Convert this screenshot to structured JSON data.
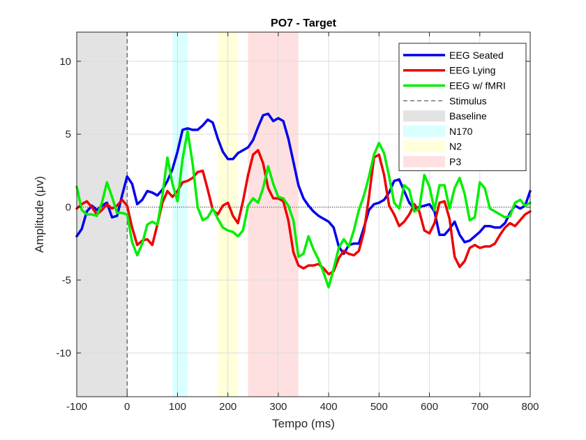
{
  "chart_data": {
    "type": "line",
    "title": "PO7 - Target",
    "xlabel": "Tempo (ms)",
    "ylabel": "Amplitude (μv)",
    "xlim": [
      -100,
      800
    ],
    "ylim": [
      -13,
      12
    ],
    "xticks": [
      -100,
      0,
      100,
      200,
      300,
      400,
      500,
      600,
      700,
      800
    ],
    "yticks": [
      -10,
      -5,
      0,
      5,
      10
    ],
    "grid": true,
    "legend_position": "top-right",
    "series": [
      {
        "name": "EEG Seated",
        "color": "#0000ee",
        "x": [
          -100,
          -90,
          -80,
          -70,
          -60,
          -50,
          -40,
          -30,
          -20,
          -10,
          0,
          10,
          20,
          30,
          40,
          50,
          60,
          70,
          80,
          90,
          100,
          110,
          120,
          130,
          140,
          150,
          160,
          170,
          180,
          190,
          200,
          210,
          220,
          230,
          240,
          250,
          260,
          270,
          280,
          290,
          300,
          310,
          320,
          330,
          340,
          350,
          360,
          370,
          380,
          390,
          400,
          410,
          420,
          430,
          440,
          450,
          460,
          470,
          480,
          490,
          500,
          510,
          520,
          530,
          540,
          550,
          560,
          570,
          580,
          590,
          600,
          610,
          620,
          630,
          640,
          650,
          660,
          670,
          680,
          690,
          700,
          710,
          720,
          730,
          740,
          750,
          760,
          770,
          780,
          790,
          800
        ],
        "y": [
          -2.0,
          -1.5,
          -0.3,
          0.1,
          -0.2,
          0.1,
          0.3,
          -0.7,
          -0.6,
          0.8,
          2.1,
          1.6,
          0.2,
          0.5,
          1.1,
          1.0,
          0.8,
          1.2,
          1.8,
          2.6,
          3.8,
          5.3,
          5.4,
          5.3,
          5.3,
          5.6,
          6.0,
          5.8,
          4.7,
          3.8,
          3.3,
          3.3,
          3.7,
          3.9,
          4.1,
          4.6,
          5.5,
          6.3,
          6.4,
          5.9,
          6.1,
          5.9,
          4.7,
          3.1,
          1.5,
          0.6,
          0.1,
          -0.3,
          -0.6,
          -0.8,
          -1.0,
          -1.4,
          -2.7,
          -3.2,
          -2.6,
          -2.5,
          -2.5,
          -1.4,
          -0.2,
          0.2,
          0.3,
          0.5,
          1.0,
          1.8,
          1.9,
          1.1,
          0.3,
          -0.1,
          0.0,
          0.1,
          0.2,
          -0.3,
          -1.9,
          -1.9,
          -1.5,
          -1.0,
          -1.9,
          -2.4,
          -2.3,
          -2.0,
          -1.7,
          -1.3,
          -1.3,
          -1.4,
          -1.4,
          -1.1,
          -0.4,
          0.1,
          -0.1,
          0.1,
          1.1
        ]
      },
      {
        "name": "EEG Lying",
        "color": "#ee0000",
        "x": [
          -100,
          -90,
          -80,
          -70,
          -60,
          -50,
          -40,
          -30,
          -20,
          -10,
          0,
          10,
          20,
          30,
          40,
          50,
          60,
          70,
          80,
          90,
          100,
          110,
          120,
          130,
          140,
          150,
          160,
          170,
          180,
          190,
          200,
          210,
          220,
          230,
          240,
          250,
          260,
          270,
          280,
          290,
          300,
          310,
          320,
          330,
          340,
          350,
          360,
          370,
          380,
          390,
          400,
          410,
          420,
          430,
          440,
          450,
          460,
          470,
          480,
          490,
          500,
          510,
          520,
          530,
          540,
          550,
          560,
          570,
          580,
          590,
          600,
          610,
          620,
          630,
          640,
          650,
          660,
          670,
          680,
          690,
          700,
          710,
          720,
          730,
          740,
          750,
          760,
          770,
          780,
          790,
          800
        ],
        "y": [
          -0.1,
          0.2,
          0.4,
          0.0,
          -0.5,
          -0.2,
          0.2,
          -0.1,
          0.1,
          0.5,
          0.1,
          -1.4,
          -2.6,
          -2.3,
          -2.2,
          -2.6,
          -1.2,
          0.3,
          1.1,
          0.7,
          1.1,
          1.7,
          1.8,
          2.0,
          2.4,
          2.5,
          1.2,
          -0.2,
          -0.5,
          0.1,
          0.3,
          -0.6,
          -1.1,
          0.4,
          2.2,
          3.6,
          3.9,
          3.0,
          1.3,
          0.6,
          0.6,
          0.4,
          -0.9,
          -3.1,
          -4.0,
          -4.2,
          -4.0,
          -4.0,
          -3.9,
          -4.2,
          -4.6,
          -4.4,
          -3.5,
          -3.0,
          -3.2,
          -3.3,
          -3.0,
          -1.7,
          0.7,
          3.4,
          3.6,
          2.2,
          0.1,
          -0.5,
          -1.3,
          -1.0,
          -0.5,
          0.2,
          -0.3,
          -1.6,
          -1.8,
          -1.1,
          0.3,
          0.4,
          -0.8,
          -3.4,
          -4.1,
          -3.7,
          -2.8,
          -2.6,
          -2.8,
          -2.7,
          -2.7,
          -2.5,
          -1.9,
          -1.4,
          -1.1,
          -1.3,
          -0.9,
          -0.5,
          -0.3
        ]
      },
      {
        "name": "EEG w/ fMRI",
        "color": "#00ee00",
        "x": [
          -100,
          -90,
          -80,
          -70,
          -60,
          -50,
          -40,
          -30,
          -20,
          -10,
          0,
          10,
          20,
          30,
          40,
          50,
          60,
          70,
          80,
          90,
          100,
          110,
          120,
          130,
          140,
          150,
          160,
          170,
          180,
          190,
          200,
          210,
          220,
          230,
          240,
          250,
          260,
          270,
          280,
          290,
          300,
          310,
          320,
          330,
          340,
          350,
          360,
          370,
          380,
          390,
          400,
          410,
          420,
          430,
          440,
          450,
          460,
          470,
          480,
          490,
          500,
          510,
          520,
          530,
          540,
          550,
          560,
          570,
          580,
          590,
          600,
          610,
          620,
          630,
          640,
          650,
          660,
          670,
          680,
          690,
          700,
          710,
          720,
          730,
          740,
          750,
          760,
          770,
          780,
          790,
          800
        ],
        "y": [
          1.4,
          -0.2,
          -0.5,
          -0.5,
          -0.6,
          0.3,
          1.7,
          0.7,
          -0.4,
          -0.4,
          -0.5,
          -2.4,
          -3.3,
          -2.5,
          -1.2,
          -1.0,
          -1.2,
          0.8,
          3.4,
          1.6,
          0.4,
          3.3,
          5.2,
          3.0,
          0.0,
          -0.9,
          -0.7,
          -0.1,
          -0.8,
          -1.4,
          -1.6,
          -1.7,
          -2.0,
          -1.6,
          0.1,
          0.6,
          0.3,
          1.3,
          2.8,
          1.6,
          0.7,
          0.6,
          0.1,
          -0.9,
          -3.4,
          -3.2,
          -2.0,
          -2.9,
          -3.6,
          -4.5,
          -5.5,
          -4.2,
          -2.8,
          -2.2,
          -2.7,
          -1.6,
          -0.2,
          0.8,
          2.1,
          3.6,
          4.4,
          3.7,
          2.1,
          0.3,
          -0.1,
          1.5,
          1.2,
          -0.3,
          -0.1,
          2.2,
          1.4,
          -0.2,
          1.5,
          1.5,
          -0.1,
          1.3,
          2.0,
          0.9,
          -0.9,
          -0.7,
          1.7,
          1.3,
          -0.1,
          -0.3,
          -0.5,
          -0.7,
          -0.6,
          0.3,
          0.5,
          0.1,
          0.3
        ]
      }
    ],
    "stimulus": {
      "name": "Stimulus",
      "x": 0,
      "color": "#333333"
    },
    "regions": [
      {
        "name": "Baseline",
        "x0": -100,
        "x1": 0,
        "color": "#e3e3e3"
      },
      {
        "name": "N170",
        "x0": 90,
        "x1": 120,
        "color": "#d9ffff"
      },
      {
        "name": "N2",
        "x0": 180,
        "x1": 220,
        "color": "#ffffd9"
      },
      {
        "name": "P3",
        "x0": 240,
        "x1": 340,
        "color": "#ffe0e0"
      }
    ]
  }
}
